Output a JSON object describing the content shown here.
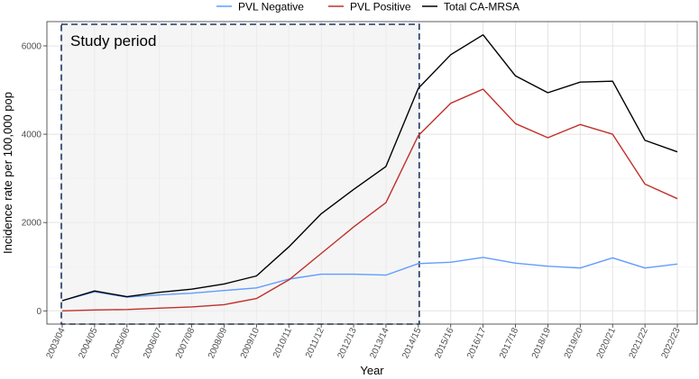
{
  "chart_data": {
    "type": "line",
    "title": "",
    "xlabel": "Year",
    "ylabel": "Incidence rate per 100,000 pop",
    "ylim": [
      -300,
      6550
    ],
    "yticks": [
      0,
      2000,
      4000,
      6000
    ],
    "categories": [
      "2003/04",
      "2004/05",
      "2005/06",
      "2006/07",
      "2007/08",
      "2008/09",
      "2009/10",
      "2010/11",
      "2011/12",
      "2012/13",
      "2013/14",
      "2014/15",
      "2015/16",
      "2016/17",
      "2017/18",
      "2018/19",
      "2019/20",
      "2020/21",
      "2021/22",
      "2022/23"
    ],
    "series": [
      {
        "name": "PVL Negative",
        "color": "#619CFF",
        "values": [
          230,
          430,
          310,
          360,
          400,
          460,
          520,
          720,
          830,
          830,
          810,
          1070,
          1100,
          1210,
          1080,
          1010,
          970,
          1200,
          970,
          1060
        ]
      },
      {
        "name": "PVL Positive",
        "color": "#C0302B",
        "values": [
          0,
          20,
          30,
          60,
          90,
          140,
          280,
          700,
          1300,
          1900,
          2450,
          3970,
          4700,
          5020,
          4240,
          3920,
          4220,
          4000,
          2870,
          2540
        ]
      },
      {
        "name": "Total CA-MRSA",
        "color": "#000000",
        "values": [
          230,
          450,
          320,
          420,
          490,
          610,
          790,
          1450,
          2200,
          2750,
          3270,
          5040,
          5800,
          6250,
          5320,
          4940,
          5180,
          5200,
          3860,
          3600
        ]
      }
    ],
    "legend_position": "top",
    "grid": true,
    "annotation": {
      "text": "Study period",
      "from": "2003/04",
      "to": "2014/15"
    }
  }
}
